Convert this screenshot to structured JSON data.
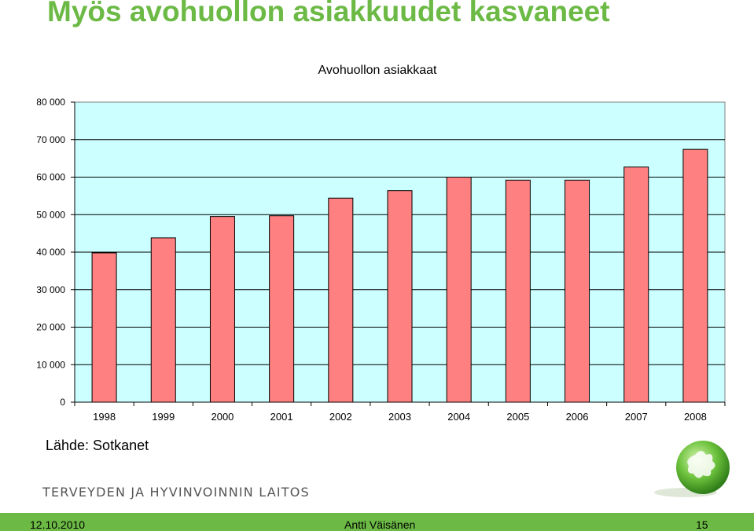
{
  "slide": {
    "title": "Myös avohuollon asiakkuudet kasvaneet",
    "source": "Lähde: Sotkanet",
    "organization": "TERVEYDEN JA HYVINVOINNIN LAITOS",
    "footer": {
      "date": "12.10.2010",
      "author": "Antti Väisänen",
      "page": "15"
    }
  },
  "colors": {
    "title": "#6cba45",
    "bar_fill": "#ff8080",
    "plot_background": "#ccffff",
    "footer_bar": "#6cba45"
  },
  "chart_data": {
    "type": "bar",
    "title": "Avohuollon asiakkaat",
    "xlabel": "",
    "ylabel": "",
    "categories": [
      "1998",
      "1999",
      "2000",
      "2001",
      "2002",
      "2003",
      "2004",
      "2005",
      "2006",
      "2007",
      "2008"
    ],
    "values": [
      39800,
      43800,
      49500,
      49700,
      54400,
      56400,
      60000,
      59200,
      59200,
      62700,
      67400
    ],
    "ylim": [
      0,
      80000
    ],
    "yticks": [
      0,
      10000,
      20000,
      30000,
      40000,
      50000,
      60000,
      70000,
      80000
    ],
    "ytick_labels": [
      "0",
      "10 000",
      "20 000",
      "30 000",
      "40 000",
      "50 000",
      "60 000",
      "70 000",
      "80 000"
    ],
    "grid": true,
    "legend": "none"
  }
}
